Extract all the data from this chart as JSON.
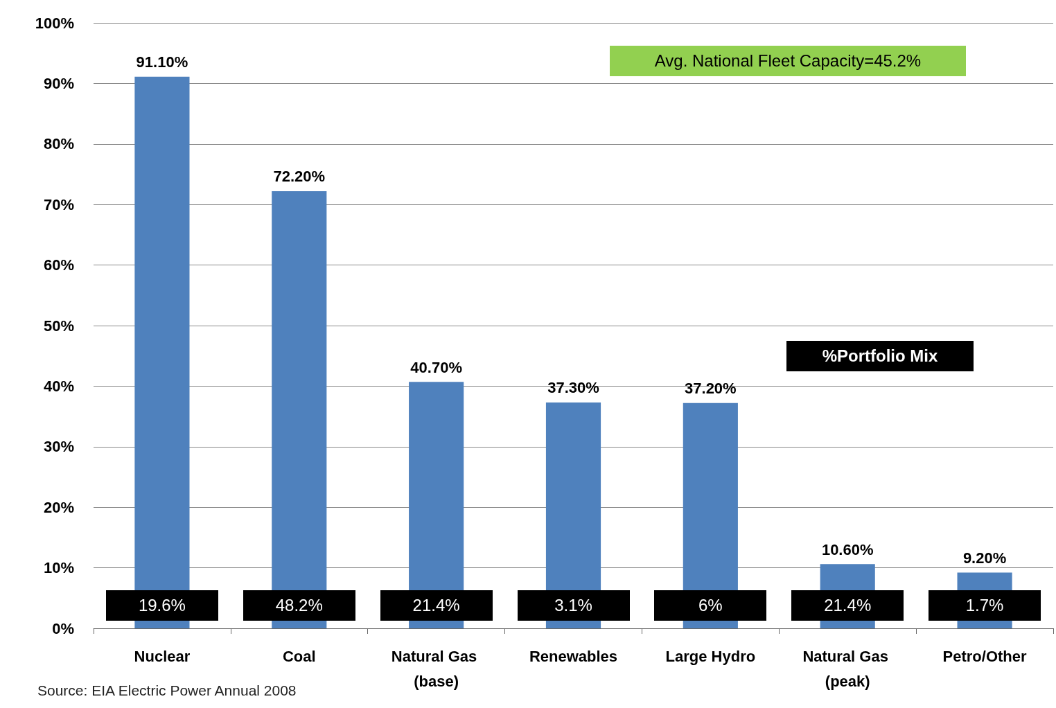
{
  "chart_data": {
    "type": "bar",
    "categories": [
      "Nuclear",
      "Coal",
      "Natural Gas (base)",
      "Renewables",
      "Large Hydro",
      "Natural Gas (peak)",
      "Petro/Other"
    ],
    "values": [
      91.1,
      72.2,
      40.7,
      37.3,
      37.2,
      10.6,
      9.2
    ],
    "value_labels": [
      "91.10%",
      "72.20%",
      "40.70%",
      "37.30%",
      "37.20%",
      "10.60%",
      "9.20%"
    ],
    "color": "#4f81bd",
    "ylim": [
      0,
      100
    ],
    "yticks": [
      {
        "value": 0,
        "label": "0%"
      },
      {
        "value": 10,
        "label": "10%"
      },
      {
        "value": 20,
        "label": "20%"
      },
      {
        "value": 30,
        "label": "30%"
      },
      {
        "value": 40,
        "label": "40%"
      },
      {
        "value": 50,
        "label": "50%"
      },
      {
        "value": 60,
        "label": "60%"
      },
      {
        "value": 70,
        "label": "70%"
      },
      {
        "value": 80,
        "label": "80%"
      },
      {
        "value": 90,
        "label": "90%"
      },
      {
        "value": 100,
        "label": "100%"
      }
    ],
    "grid": "y",
    "annotations": [
      "Avg. National Fleet Capacity=45.2%",
      "%Portfolio Mix",
      "Source: EIA Electric Power Annual 2008",
      "19.6%",
      "48.2%",
      "21.4%",
      "3.1%",
      "6%",
      "21.4%",
      "1.7%"
    ]
  }
}
